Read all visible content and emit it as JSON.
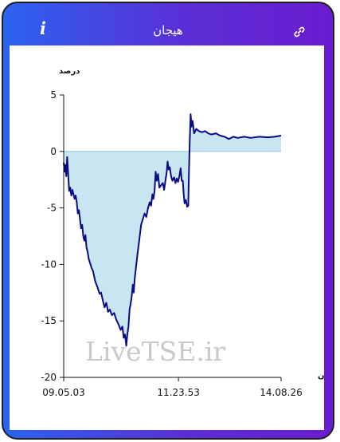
{
  "header": {
    "title": "هیجان",
    "info_icon": "info-icon",
    "link_icon": "link-icon"
  },
  "colors": {
    "gradient_start": "#2b63f0",
    "gradient_end": "#6a1ccf",
    "line": "#0a0a82",
    "fill": "#c8e6f2",
    "axis": "#111111"
  },
  "watermark": "LiveTSE.ir",
  "chart_data": {
    "type": "area",
    "ylabel": "درصد",
    "xlabel": "زمان",
    "ylim": [
      -20,
      5
    ],
    "yticks": [
      5,
      0,
      -5,
      -10,
      -15,
      -20
    ],
    "xticks": [
      "09.05.03",
      "11.23.53",
      "14.08.26"
    ],
    "xrange": [
      0,
      1
    ],
    "xtick_positions": [
      0,
      0.528,
      1
    ],
    "series": [
      {
        "values": [
          [
            0.0,
            -1.0
          ],
          [
            0.004,
            -1.8
          ],
          [
            0.008,
            -1.2
          ],
          [
            0.012,
            -2.2
          ],
          [
            0.016,
            -0.5
          ],
          [
            0.02,
            -1.8
          ],
          [
            0.025,
            -3.5
          ],
          [
            0.03,
            -3.2
          ],
          [
            0.035,
            -3.9
          ],
          [
            0.04,
            -3.4
          ],
          [
            0.045,
            -3.8
          ],
          [
            0.05,
            -4.2
          ],
          [
            0.055,
            -3.9
          ],
          [
            0.06,
            -4.5
          ],
          [
            0.065,
            -5.5
          ],
          [
            0.07,
            -5.2
          ],
          [
            0.075,
            -6.0
          ],
          [
            0.08,
            -6.8
          ],
          [
            0.085,
            -6.5
          ],
          [
            0.09,
            -7.5
          ],
          [
            0.095,
            -7.9
          ],
          [
            0.1,
            -7.4
          ],
          [
            0.105,
            -8.5
          ],
          [
            0.11,
            -8.9
          ],
          [
            0.115,
            -9.5
          ],
          [
            0.12,
            -9.8
          ],
          [
            0.128,
            -10.3
          ],
          [
            0.135,
            -10.6
          ],
          [
            0.145,
            -11.5
          ],
          [
            0.155,
            -12.0
          ],
          [
            0.165,
            -12.6
          ],
          [
            0.172,
            -12.5
          ],
          [
            0.18,
            -13.2
          ],
          [
            0.188,
            -13.8
          ],
          [
            0.196,
            -13.4
          ],
          [
            0.204,
            -14.2
          ],
          [
            0.212,
            -14.0
          ],
          [
            0.222,
            -14.5
          ],
          [
            0.232,
            -14.3
          ],
          [
            0.242,
            -14.9
          ],
          [
            0.252,
            -15.3
          ],
          [
            0.262,
            -15.8
          ],
          [
            0.27,
            -15.5
          ],
          [
            0.276,
            -16.5
          ],
          [
            0.282,
            -16.2
          ],
          [
            0.288,
            -17.2
          ],
          [
            0.292,
            -16.3
          ],
          [
            0.298,
            -15.5
          ],
          [
            0.303,
            -14.0
          ],
          [
            0.308,
            -13.5
          ],
          [
            0.313,
            -12.8
          ],
          [
            0.318,
            -11.8
          ],
          [
            0.322,
            -12.5
          ],
          [
            0.327,
            -11.2
          ],
          [
            0.333,
            -10.2
          ],
          [
            0.34,
            -9.0
          ],
          [
            0.348,
            -7.8
          ],
          [
            0.356,
            -6.5
          ],
          [
            0.364,
            -6.0
          ],
          [
            0.372,
            -5.5
          ],
          [
            0.38,
            -5.8
          ],
          [
            0.388,
            -5.0
          ],
          [
            0.396,
            -4.5
          ],
          [
            0.402,
            -4.8
          ],
          [
            0.408,
            -3.8
          ],
          [
            0.413,
            -4.2
          ],
          [
            0.418,
            -3.5
          ],
          [
            0.423,
            -1.8
          ],
          [
            0.428,
            -2.6
          ],
          [
            0.434,
            -2.0
          ],
          [
            0.44,
            -3.2
          ],
          [
            0.448,
            -3.0
          ],
          [
            0.456,
            -2.8
          ],
          [
            0.462,
            -3.4
          ],
          [
            0.468,
            -2.6
          ],
          [
            0.474,
            -1.8
          ],
          [
            0.478,
            -0.9
          ],
          [
            0.483,
            -1.6
          ],
          [
            0.488,
            -1.4
          ],
          [
            0.494,
            -2.2
          ],
          [
            0.5,
            -2.6
          ],
          [
            0.508,
            -2.3
          ],
          [
            0.514,
            -2.8
          ],
          [
            0.52,
            -2.4
          ],
          [
            0.526,
            -2.7
          ],
          [
            0.532,
            -2.2
          ],
          [
            0.538,
            -1.5
          ],
          [
            0.543,
            -2.6
          ],
          [
            0.548,
            -2.6
          ],
          [
            0.552,
            -3.8
          ],
          [
            0.556,
            -4.6
          ],
          [
            0.562,
            -4.3
          ],
          [
            0.568,
            -4.9
          ],
          [
            0.573,
            -4.8
          ],
          [
            0.576,
            -2.0
          ],
          [
            0.58,
            1.0
          ],
          [
            0.584,
            3.3
          ],
          [
            0.588,
            2.2
          ],
          [
            0.593,
            2.7
          ],
          [
            0.6,
            1.6
          ],
          [
            0.61,
            2.0
          ],
          [
            0.622,
            1.8
          ],
          [
            0.636,
            1.7
          ],
          [
            0.65,
            1.8
          ],
          [
            0.665,
            1.6
          ],
          [
            0.68,
            1.5
          ],
          [
            0.7,
            1.6
          ],
          [
            0.72,
            1.4
          ],
          [
            0.74,
            1.3
          ],
          [
            0.76,
            1.1
          ],
          [
            0.78,
            1.3
          ],
          [
            0.8,
            1.2
          ],
          [
            0.83,
            1.3
          ],
          [
            0.86,
            1.2
          ],
          [
            0.9,
            1.3
          ],
          [
            0.94,
            1.25
          ],
          [
            0.97,
            1.3
          ],
          [
            1.0,
            1.4
          ]
        ]
      }
    ]
  }
}
